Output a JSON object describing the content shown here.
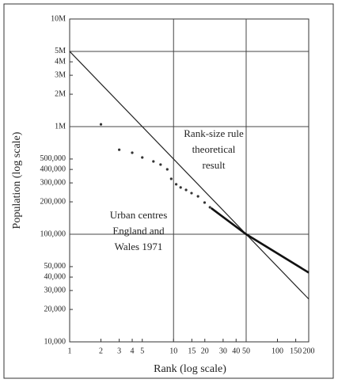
{
  "chart_data": {
    "type": "line",
    "x_label": "Rank (log scale)",
    "y_label": "Population (log scale)",
    "xscale": "log",
    "yscale": "log",
    "xlim": [
      1,
      200
    ],
    "ylim": [
      10000,
      10000000
    ],
    "xticks": [
      1,
      2,
      3,
      4,
      5,
      10,
      15,
      20,
      30,
      40,
      50,
      100,
      150,
      200
    ],
    "yticks": [
      {
        "value": 10000000,
        "label": "10M"
      },
      {
        "value": 5000000,
        "label": "5M"
      },
      {
        "value": 4000000,
        "label": "4M"
      },
      {
        "value": 3000000,
        "label": "3M"
      },
      {
        "value": 2000000,
        "label": "2M"
      },
      {
        "value": 1000000,
        "label": "1M"
      },
      {
        "value": 500000,
        "label": "500,000"
      },
      {
        "value": 400000,
        "label": "400,000"
      },
      {
        "value": 300000,
        "label": "300,000"
      },
      {
        "value": 200000,
        "label": "200,000"
      },
      {
        "value": 100000,
        "label": "100,000"
      },
      {
        "value": 50000,
        "label": "50,000"
      },
      {
        "value": 40000,
        "label": "40,000"
      },
      {
        "value": 30000,
        "label": "30,000"
      },
      {
        "value": 20000,
        "label": "20,000"
      },
      {
        "value": 10000,
        "label": "10,000"
      }
    ],
    "x_gridlines": [
      10,
      50
    ],
    "y_gridlines": [
      5000000,
      1000000,
      100000
    ],
    "series": [
      {
        "style": "line",
        "color": "#222222",
        "width": 1.2,
        "x": [
          1,
          200
        ],
        "values": [
          5000000,
          25000
        ]
      },
      {
        "style": "points",
        "color": "#333333",
        "x": [
          2,
          3,
          4,
          5,
          6.4,
          7.5,
          8.7,
          9.5,
          10.6,
          11.7,
          13.2,
          14.9,
          17.2,
          19.9,
          22.4
        ],
        "values": [
          1050000,
          610000,
          572000,
          517000,
          475000,
          444000,
          401000,
          327000,
          291000,
          272000,
          258000,
          241000,
          225000,
          197000,
          178000
        ]
      },
      {
        "style": "line",
        "color": "#111111",
        "width": 2.6,
        "x": [
          23,
          50,
          200
        ],
        "values": [
          175000,
          100000,
          44000
        ]
      }
    ],
    "annotations": [
      {
        "lines": [
          "Rank-size rule",
          "theoretical",
          "result"
        ]
      },
      {
        "lines": [
          "Urban centres",
          "England and",
          "Wales 1971"
        ]
      }
    ]
  }
}
